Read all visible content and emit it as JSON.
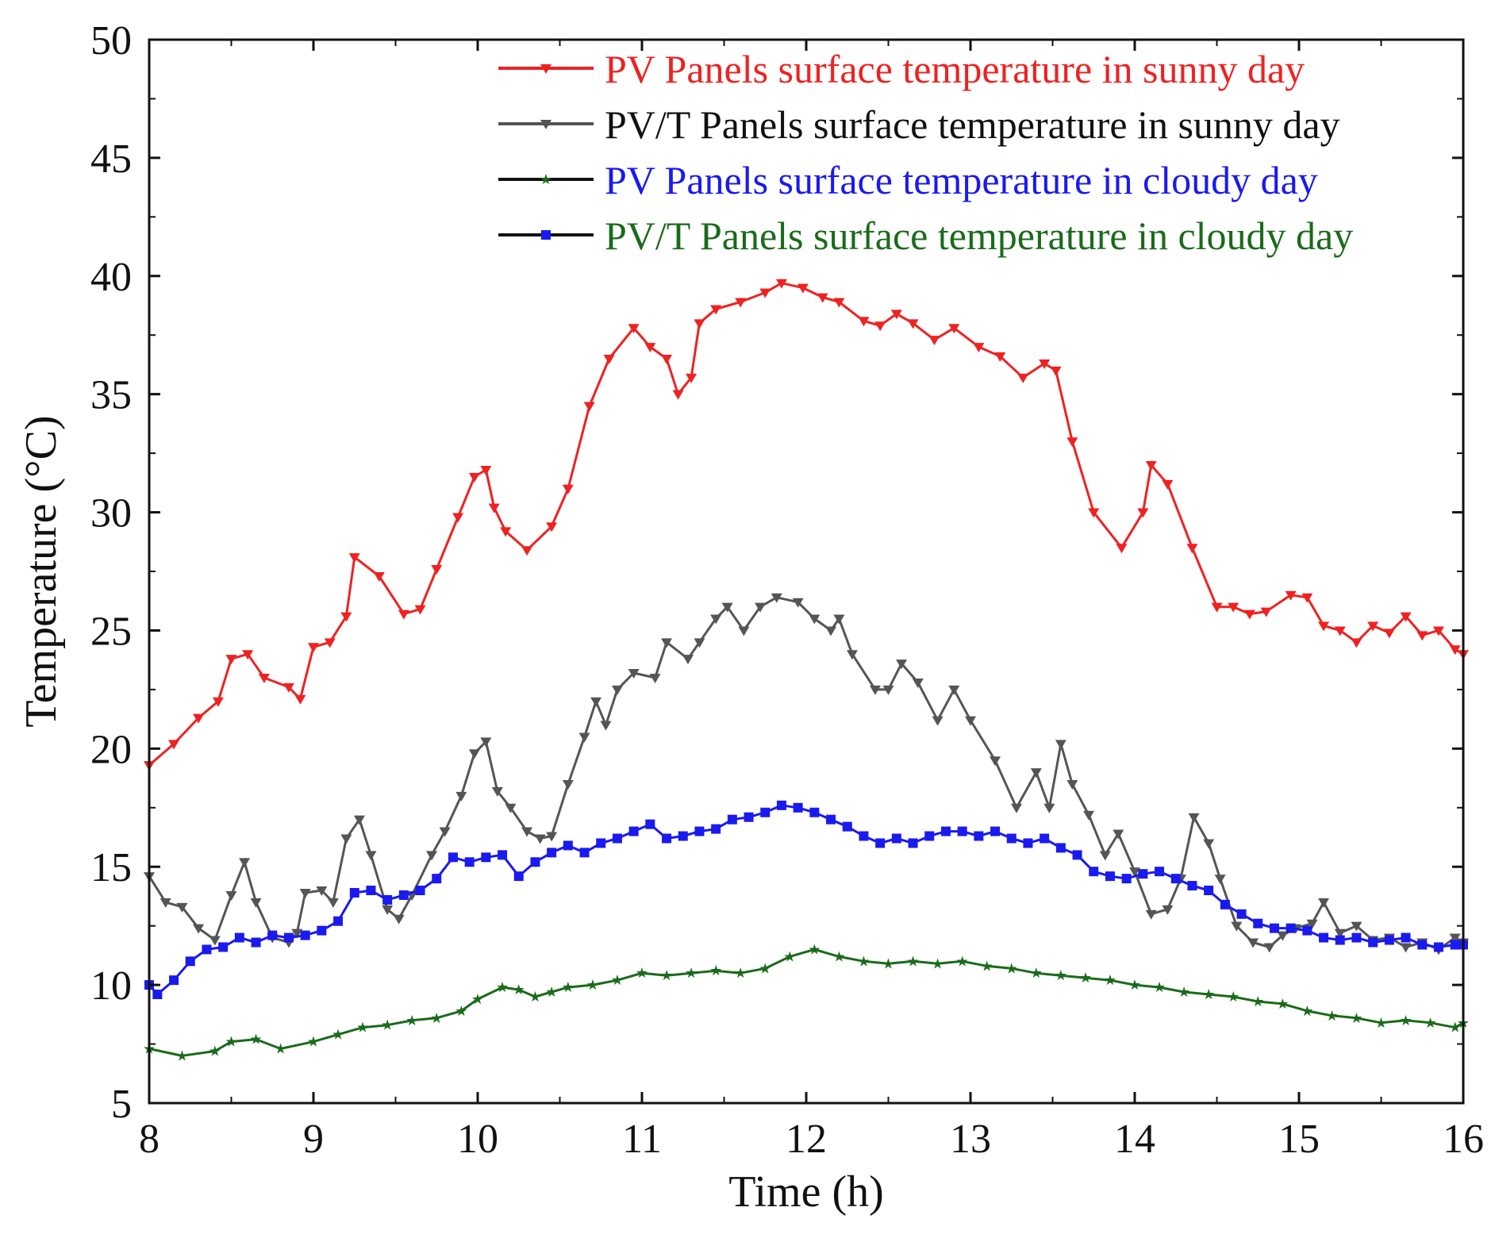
{
  "chart_data": {
    "type": "line",
    "title": "",
    "xlabel": "Time (h)",
    "ylabel": "Temperature (°C)",
    "xlim": [
      8,
      16
    ],
    "ylim": [
      5,
      50
    ],
    "xticks": [
      8,
      9,
      10,
      11,
      12,
      13,
      14,
      15,
      16
    ],
    "yticks": [
      5,
      10,
      15,
      20,
      25,
      30,
      35,
      40,
      45,
      50
    ],
    "legend_position": "top-right",
    "series": [
      {
        "name": "PV Panels surface temperature in sunny day",
        "color": "#ee2222",
        "text_color": "#ee2222",
        "marker": "triangle-down",
        "x": [
          8.0,
          8.15,
          8.3,
          8.42,
          8.5,
          8.6,
          8.7,
          8.85,
          8.92,
          9.0,
          9.1,
          9.2,
          9.25,
          9.4,
          9.55,
          9.65,
          9.75,
          9.88,
          9.98,
          10.05,
          10.1,
          10.17,
          10.3,
          10.45,
          10.55,
          10.68,
          10.8,
          10.95,
          11.05,
          11.15,
          11.22,
          11.3,
          11.35,
          11.45,
          11.6,
          11.75,
          11.85,
          11.98,
          12.1,
          12.2,
          12.35,
          12.45,
          12.55,
          12.65,
          12.78,
          12.9,
          13.05,
          13.18,
          13.32,
          13.45,
          13.52,
          13.62,
          13.75,
          13.92,
          14.05,
          14.1,
          14.2,
          14.35,
          14.5,
          14.6,
          14.7,
          14.8,
          14.95,
          15.05,
          15.15,
          15.25,
          15.35,
          15.45,
          15.55,
          15.65,
          15.75,
          15.85,
          15.95,
          16.0
        ],
        "values": [
          19.3,
          20.2,
          21.3,
          22.0,
          23.8,
          24.0,
          23.0,
          22.6,
          22.1,
          24.3,
          24.5,
          25.6,
          28.1,
          27.3,
          25.7,
          25.9,
          27.6,
          29.8,
          31.5,
          31.8,
          30.2,
          29.2,
          28.4,
          29.4,
          31.0,
          34.5,
          36.5,
          37.8,
          37.0,
          36.5,
          35.0,
          35.7,
          38.0,
          38.6,
          38.9,
          39.3,
          39.7,
          39.5,
          39.1,
          38.9,
          38.1,
          37.9,
          38.4,
          38.0,
          37.3,
          37.8,
          37.0,
          36.6,
          35.7,
          36.3,
          36.0,
          33.0,
          30.0,
          28.5,
          30.0,
          32.0,
          31.2,
          28.5,
          26.0,
          26.0,
          25.7,
          25.8,
          26.5,
          26.4,
          25.2,
          25.0,
          24.5,
          25.2,
          24.9,
          25.6,
          24.8,
          25.0,
          24.2,
          24.0
        ]
      },
      {
        "name": "PV/T Panels surface temperature in sunny day",
        "color": "#555555",
        "text_color": "#111111",
        "marker": "triangle-down",
        "x": [
          8.0,
          8.1,
          8.2,
          8.3,
          8.4,
          8.5,
          8.58,
          8.65,
          8.75,
          8.85,
          8.9,
          8.95,
          9.05,
          9.12,
          9.2,
          9.28,
          9.35,
          9.45,
          9.52,
          9.6,
          9.72,
          9.8,
          9.9,
          9.98,
          10.05,
          10.12,
          10.2,
          10.3,
          10.38,
          10.45,
          10.55,
          10.65,
          10.72,
          10.78,
          10.85,
          10.95,
          11.08,
          11.15,
          11.28,
          11.35,
          11.45,
          11.52,
          11.62,
          11.72,
          11.82,
          11.95,
          12.05,
          12.15,
          12.2,
          12.28,
          12.42,
          12.5,
          12.58,
          12.68,
          12.8,
          12.9,
          13.0,
          13.15,
          13.28,
          13.4,
          13.48,
          13.55,
          13.62,
          13.72,
          13.82,
          13.9,
          14.0,
          14.1,
          14.2,
          14.28,
          14.36,
          14.45,
          14.52,
          14.62,
          14.72,
          14.82,
          14.9,
          14.98,
          15.08,
          15.15,
          15.25,
          15.35,
          15.45,
          15.55,
          15.65,
          15.75,
          15.85,
          15.95,
          16.0
        ],
        "values": [
          14.6,
          13.5,
          13.3,
          12.4,
          11.9,
          13.8,
          15.2,
          13.5,
          12.0,
          11.8,
          12.2,
          13.9,
          14.0,
          13.5,
          16.2,
          17.0,
          15.5,
          13.2,
          12.8,
          13.8,
          15.5,
          16.5,
          18.0,
          19.8,
          20.3,
          18.2,
          17.5,
          16.5,
          16.2,
          16.3,
          18.5,
          20.5,
          22.0,
          21.0,
          22.5,
          23.2,
          23.0,
          24.5,
          23.8,
          24.5,
          25.5,
          26.0,
          25.0,
          26.0,
          26.4,
          26.2,
          25.5,
          25.0,
          25.5,
          24.0,
          22.5,
          22.5,
          23.6,
          22.8,
          21.2,
          22.5,
          21.2,
          19.5,
          17.5,
          19.0,
          17.5,
          20.2,
          18.5,
          17.2,
          15.5,
          16.4,
          14.8,
          13.0,
          13.2,
          14.5,
          17.1,
          16.0,
          14.5,
          12.5,
          11.8,
          11.6,
          12.1,
          12.4,
          12.6,
          13.5,
          12.2,
          12.5,
          11.9,
          12.0,
          11.6,
          11.8,
          11.5,
          12.0,
          11.8
        ]
      },
      {
        "name": "PV Panels surface temperature in cloudy day",
        "color": "#1a6b1a",
        "text_color": "#1a1aee",
        "marker": "star",
        "x": [
          8.0,
          8.2,
          8.4,
          8.5,
          8.65,
          8.8,
          9.0,
          9.15,
          9.3,
          9.45,
          9.6,
          9.75,
          9.9,
          10.0,
          10.15,
          10.25,
          10.35,
          10.45,
          10.55,
          10.7,
          10.85,
          11.0,
          11.15,
          11.3,
          11.45,
          11.6,
          11.75,
          11.9,
          12.05,
          12.2,
          12.35,
          12.5,
          12.65,
          12.8,
          12.95,
          13.1,
          13.25,
          13.4,
          13.55,
          13.7,
          13.85,
          14.0,
          14.15,
          14.3,
          14.45,
          14.6,
          14.75,
          14.9,
          15.05,
          15.2,
          15.35,
          15.5,
          15.65,
          15.8,
          15.95,
          16.0
        ],
        "values": [
          7.3,
          7.0,
          7.2,
          7.6,
          7.7,
          7.3,
          7.6,
          7.9,
          8.2,
          8.3,
          8.5,
          8.6,
          8.9,
          9.4,
          9.9,
          9.8,
          9.5,
          9.7,
          9.9,
          10.0,
          10.2,
          10.5,
          10.4,
          10.5,
          10.6,
          10.5,
          10.7,
          11.2,
          11.5,
          11.2,
          11.0,
          10.9,
          11.0,
          10.9,
          11.0,
          10.8,
          10.7,
          10.5,
          10.4,
          10.3,
          10.2,
          10.0,
          9.9,
          9.7,
          9.6,
          9.5,
          9.3,
          9.2,
          8.9,
          8.7,
          8.6,
          8.4,
          8.5,
          8.4,
          8.2,
          8.4
        ]
      },
      {
        "name": "PV/T Panels surface temperature in cloudy day",
        "color": "#1a1aee",
        "text_color": "#1a6b1a",
        "marker": "square",
        "x": [
          8.0,
          8.05,
          8.15,
          8.25,
          8.35,
          8.45,
          8.55,
          8.65,
          8.75,
          8.85,
          8.95,
          9.05,
          9.15,
          9.25,
          9.35,
          9.45,
          9.55,
          9.65,
          9.75,
          9.85,
          9.95,
          10.05,
          10.15,
          10.25,
          10.35,
          10.45,
          10.55,
          10.65,
          10.75,
          10.85,
          10.95,
          11.05,
          11.15,
          11.25,
          11.35,
          11.45,
          11.55,
          11.65,
          11.75,
          11.85,
          11.95,
          12.05,
          12.15,
          12.25,
          12.35,
          12.45,
          12.55,
          12.65,
          12.75,
          12.85,
          12.95,
          13.05,
          13.15,
          13.25,
          13.35,
          13.45,
          13.55,
          13.65,
          13.75,
          13.85,
          13.95,
          14.05,
          14.15,
          14.25,
          14.35,
          14.45,
          14.55,
          14.65,
          14.75,
          14.85,
          14.95,
          15.05,
          15.15,
          15.25,
          15.35,
          15.45,
          15.55,
          15.65,
          15.75,
          15.85,
          15.95,
          16.0
        ],
        "values": [
          10.0,
          9.6,
          10.2,
          11.0,
          11.5,
          11.6,
          12.0,
          11.8,
          12.1,
          12.0,
          12.1,
          12.3,
          12.7,
          13.9,
          14.0,
          13.6,
          13.8,
          14.0,
          14.5,
          15.4,
          15.2,
          15.4,
          15.5,
          14.6,
          15.2,
          15.6,
          15.9,
          15.6,
          16.0,
          16.2,
          16.5,
          16.8,
          16.2,
          16.3,
          16.5,
          16.6,
          17.0,
          17.1,
          17.3,
          17.6,
          17.5,
          17.3,
          17.0,
          16.7,
          16.3,
          16.0,
          16.2,
          16.0,
          16.3,
          16.5,
          16.5,
          16.3,
          16.5,
          16.2,
          16.0,
          16.2,
          15.8,
          15.5,
          14.8,
          14.6,
          14.5,
          14.7,
          14.8,
          14.5,
          14.2,
          14.0,
          13.4,
          13.0,
          12.6,
          12.4,
          12.4,
          12.3,
          12.0,
          11.9,
          12.0,
          11.8,
          11.9,
          12.0,
          11.7,
          11.6,
          11.7,
          11.7
        ]
      }
    ]
  }
}
